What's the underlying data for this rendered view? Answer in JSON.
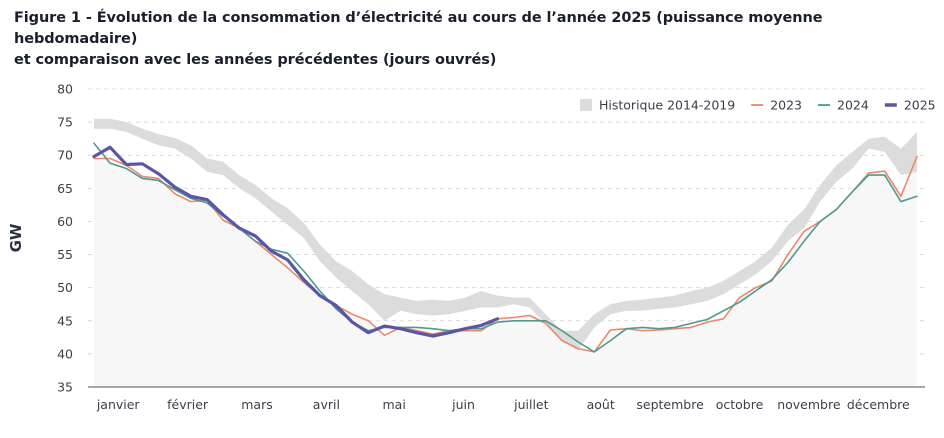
{
  "title_line1": "Figure 1 - Évolution de la consommation d’électricité au cours de l’année 2025 (puissance moyenne hebdomadaire)",
  "title_line2": "et comparaison avec les années précédentes (jours ouvrés)",
  "chart_data": {
    "type": "line",
    "title": "Figure 1 - Évolution de la consommation d’électricité au cours de l’année 2025 (puissance moyenne hebdomadaire) et comparaison avec les années précédentes (jours ouvrés)",
    "xlabel": "",
    "ylabel": "GW",
    "ylim": [
      35,
      80
    ],
    "yticks": [
      35,
      40,
      45,
      50,
      55,
      60,
      65,
      70,
      75,
      80
    ],
    "grid": true,
    "legend_position": "top-right",
    "x_unit": "week",
    "x_range": [
      1,
      52
    ],
    "month_labels": [
      "janvier",
      "février",
      "mars",
      "avril",
      "mai",
      "juin",
      "juillet",
      "août",
      "septembre",
      "octobre",
      "novembre",
      "décembre"
    ],
    "month_label_weeks": [
      2.5,
      6.8,
      11.1,
      15.4,
      19.6,
      23.9,
      28.1,
      32.4,
      36.7,
      41.0,
      45.3,
      49.6
    ],
    "colors": {
      "historique": "#dcdcdc",
      "2023": "#e8896a",
      "2024": "#4e9a8e",
      "2025": "#5b55a6"
    },
    "legend": [
      {
        "key": "historique",
        "label": "Historique 2014-2019"
      },
      {
        "key": "2023",
        "label": "2023"
      },
      {
        "key": "2024",
        "label": "2024"
      },
      {
        "key": "2025",
        "label": "2025"
      }
    ],
    "historique_band": {
      "name": "Historique 2014-2019",
      "upper": [
        75.5,
        75.5,
        75.0,
        74.0,
        73.2,
        72.6,
        71.5,
        69.5,
        69.0,
        67.0,
        65.5,
        63.5,
        62.0,
        59.8,
        56.5,
        54.0,
        52.5,
        50.5,
        49.0,
        48.5,
        48.0,
        48.2,
        48.0,
        48.5,
        49.5,
        48.8,
        48.5,
        48.5,
        46.0,
        43.5,
        43.5,
        46.0,
        47.5,
        48.0,
        48.2,
        48.5,
        48.8,
        49.5,
        50.0,
        51.0,
        52.5,
        54.0,
        56.0,
        59.5,
        61.8,
        65.5,
        68.5,
        70.5,
        72.5,
        72.8,
        71.0,
        73.5
      ],
      "lower": [
        74.0,
        74.0,
        73.5,
        72.5,
        71.5,
        71.0,
        69.5,
        67.5,
        67.0,
        65.0,
        63.5,
        61.5,
        59.5,
        57.5,
        54.0,
        51.5,
        49.5,
        47.5,
        45.0,
        46.5,
        46.0,
        45.8,
        46.0,
        46.5,
        47.0,
        47.0,
        47.5,
        47.0,
        44.5,
        42.0,
        40.5,
        44.0,
        46.0,
        46.5,
        46.5,
        46.8,
        47.0,
        47.5,
        48.0,
        49.0,
        50.5,
        52.0,
        54.0,
        57.0,
        59.0,
        63.0,
        66.0,
        68.0,
        71.0,
        70.5,
        67.0,
        67.5
      ]
    },
    "series": [
      {
        "name": "2023",
        "values": [
          69.5,
          69.5,
          68.5,
          66.8,
          66.5,
          64.2,
          63.0,
          63.2,
          60.2,
          59.0,
          57.0,
          55.0,
          53.0,
          50.8,
          48.8,
          47.3,
          46.0,
          45.0,
          42.8,
          44.0,
          43.5,
          43.0,
          43.5,
          43.5,
          43.5,
          45.3,
          45.5,
          45.8,
          44.6,
          42.0,
          40.8,
          40.3,
          43.6,
          43.8,
          43.5,
          43.6,
          43.8,
          44.0,
          44.8,
          45.3,
          48.5,
          50.0,
          51.0,
          55.0,
          58.5,
          60.0,
          61.8,
          64.5,
          67.3,
          67.6,
          63.8,
          69.8
        ]
      },
      {
        "name": "2024",
        "values": [
          71.8,
          68.8,
          68.0,
          66.5,
          66.2,
          64.8,
          63.5,
          62.8,
          60.8,
          59.0,
          57.0,
          55.8,
          55.2,
          52.5,
          49.5,
          46.8,
          44.8,
          43.5,
          44.0,
          44.0,
          44.0,
          43.8,
          43.5,
          43.8,
          43.8,
          44.8,
          45.0,
          45.0,
          45.0,
          43.5,
          41.8,
          40.3,
          42.0,
          43.8,
          44.0,
          43.8,
          44.0,
          44.6,
          45.2,
          46.5,
          47.8,
          49.5,
          51.2,
          53.8,
          57.0,
          60.0,
          61.8,
          64.5,
          67.0,
          67.0,
          63.0,
          63.8
        ]
      },
      {
        "name": "2025",
        "values": [
          69.8,
          71.2,
          68.6,
          68.7,
          67.2,
          65.2,
          63.8,
          63.3,
          61.0,
          59.0,
          57.8,
          55.5,
          54.2,
          51.2,
          48.8,
          47.3,
          44.8,
          43.2,
          44.2,
          43.8,
          43.2,
          42.7,
          43.2,
          43.8,
          44.3,
          45.3
        ]
      }
    ]
  }
}
